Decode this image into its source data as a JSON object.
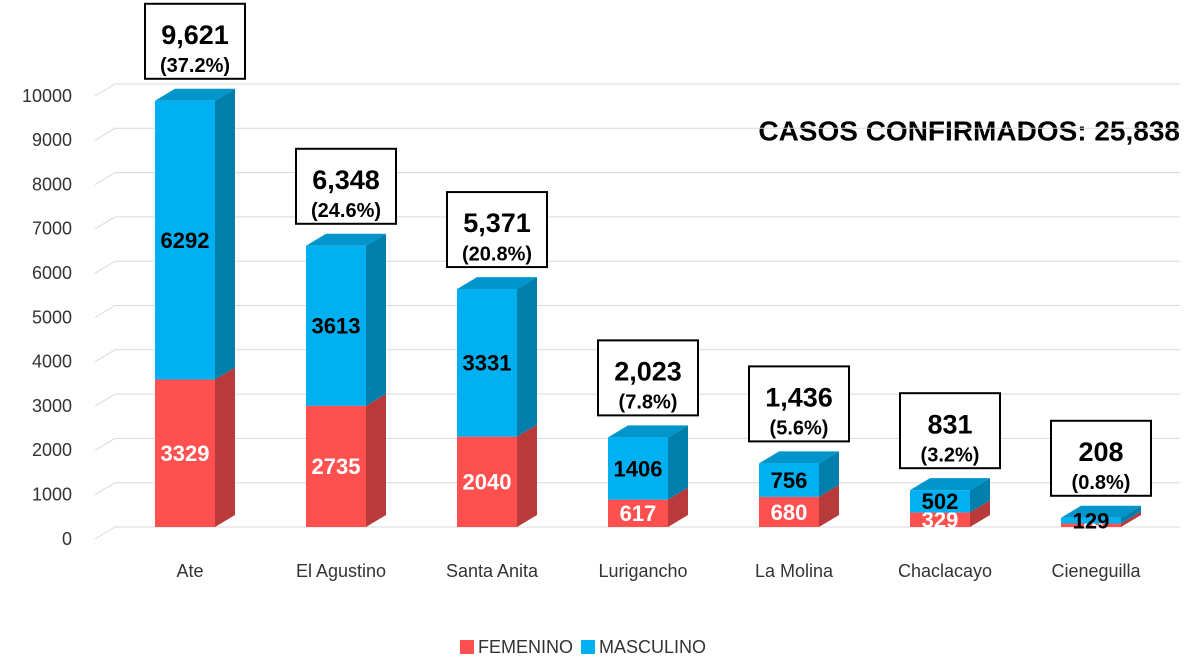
{
  "chart_data": {
    "type": "bar3d_stacked",
    "annotation": "CASOS CONFIRMADOS: 25,838",
    "categories": [
      "Ate",
      "El Agustino",
      "Santa Anita",
      "Lurigancho",
      "La Molina",
      "Chaclacayo",
      "Cieneguilla"
    ],
    "series": [
      {
        "name": "FEMENINO",
        "color": "#ff5050",
        "values": [
          3329,
          2735,
          2040,
          617,
          680,
          329,
          79
        ]
      },
      {
        "name": "MASCULINO",
        "color": "#00b0f0",
        "values": [
          6292,
          3613,
          3331,
          1406,
          756,
          502,
          129
        ]
      }
    ],
    "totals": {
      "values": [
        9621,
        6348,
        5371,
        2023,
        1436,
        831,
        208
      ],
      "value_labels": [
        "9,621",
        "6,348",
        "5,371",
        "2,023",
        "1,436",
        "831",
        "208"
      ]
    },
    "shares": {
      "values": [
        37.2,
        24.6,
        20.8,
        7.8,
        5.6,
        3.2,
        0.8
      ],
      "value_labels": [
        "(37.2%)",
        "(24.6%)",
        "(20.8%)",
        "(7.8%)",
        "(5.6%)",
        "(3.2%)",
        "(0.8%)"
      ]
    },
    "ylim": [
      0,
      10000
    ],
    "yticks": [
      0,
      1000,
      2000,
      3000,
      4000,
      5000,
      6000,
      7000,
      8000,
      9000,
      10000
    ],
    "grid": true,
    "legend": "bottom"
  }
}
